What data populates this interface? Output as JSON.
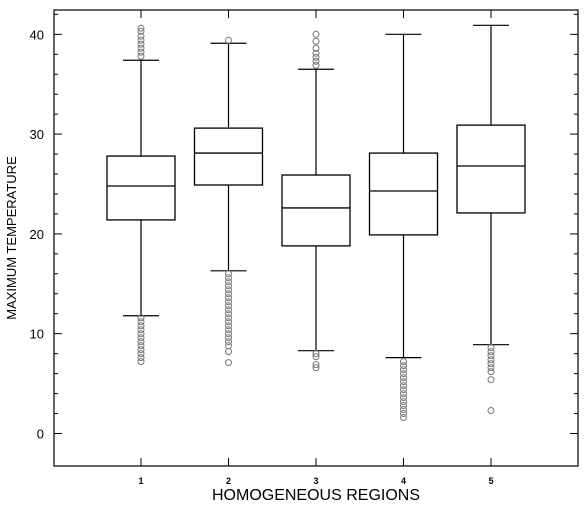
{
  "chart_data": {
    "type": "box",
    "xlabel": "HOMOGENEOUS REGIONS",
    "ylabel": "MAXIMUM TEMPERATURE",
    "ylim": [
      -0.4,
      42.5
    ],
    "yticks": [
      0,
      10,
      20,
      30,
      40
    ],
    "grid": false,
    "categories": [
      "1",
      "2",
      "3",
      "4",
      "5"
    ],
    "boxes": [
      {
        "category": "1",
        "whisker_low": 11.8,
        "q1": 21.4,
        "median": 24.8,
        "q3": 27.8,
        "whisker_high": 37.4,
        "outliers_low": [
          11.6,
          11.2,
          10.8,
          10.4,
          10.0,
          9.6,
          9.2,
          8.8,
          8.4,
          8.0,
          7.6,
          7.2
        ],
        "outliers_high": [
          37.8,
          38.2,
          38.6,
          39.0,
          39.4,
          39.8,
          40.3,
          40.6
        ]
      },
      {
        "category": "2",
        "whisker_low": 16.3,
        "q1": 24.9,
        "median": 28.1,
        "q3": 30.6,
        "whisker_high": 39.1,
        "outliers_low": [
          16.0,
          15.6,
          15.2,
          14.8,
          14.4,
          14.0,
          13.6,
          13.2,
          12.8,
          12.4,
          12.0,
          11.6,
          11.2,
          10.8,
          10.4,
          10.0,
          9.6,
          9.2,
          8.8,
          8.2,
          7.1
        ],
        "outliers_high": [
          39.4
        ]
      },
      {
        "category": "3",
        "whisker_low": 8.3,
        "q1": 18.8,
        "median": 22.6,
        "q3": 25.9,
        "whisker_high": 36.5,
        "outliers_low": [
          8.0,
          7.7,
          6.9,
          6.6
        ],
        "outliers_high": [
          36.9,
          37.3,
          37.7,
          38.1,
          38.6,
          39.3,
          40.0
        ]
      },
      {
        "category": "4",
        "whisker_low": 7.6,
        "q1": 19.9,
        "median": 24.3,
        "q3": 28.1,
        "whisker_high": 40.0,
        "outliers_low": [
          7.2,
          6.8,
          6.4,
          6.0,
          5.6,
          5.2,
          4.8,
          4.4,
          4.0,
          3.6,
          3.2,
          2.8,
          2.4,
          2.0,
          1.6
        ],
        "outliers_high": []
      },
      {
        "category": "5",
        "whisker_low": 8.9,
        "q1": 22.1,
        "median": 26.8,
        "q3": 30.9,
        "whisker_high": 40.9,
        "outliers_low": [
          8.6,
          8.2,
          7.8,
          7.4,
          7.0,
          6.6,
          6.2,
          5.4,
          2.3
        ],
        "outliers_high": []
      }
    ]
  }
}
